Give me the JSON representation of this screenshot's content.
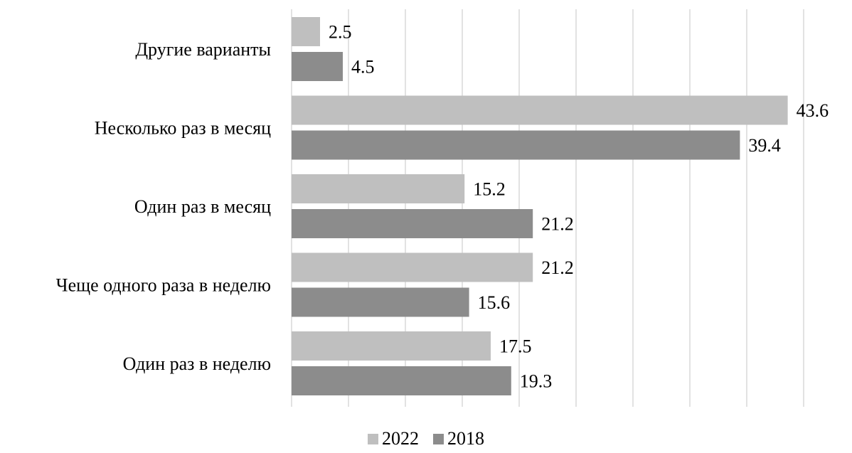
{
  "chart_data": {
    "type": "bar",
    "orientation": "horizontal",
    "categories": [
      "Другие варианты",
      "Несколько раз в месяц",
      "Один раз в месяц",
      "Чеще одного раза в неделю",
      "Один раз в неделю"
    ],
    "series": [
      {
        "name": "2022",
        "color": "#bfbfbf",
        "values": [
          2.5,
          43.6,
          15.2,
          21.2,
          17.5
        ]
      },
      {
        "name": "2018",
        "color": "#8c8c8c",
        "values": [
          4.5,
          39.4,
          21.2,
          15.6,
          19.3
        ]
      }
    ],
    "xlim": [
      0,
      45
    ],
    "x_tick_step": 5,
    "x_tick_labels_visible": false,
    "grid": "vertical",
    "legend_position": "bottom",
    "data_labels": true
  }
}
